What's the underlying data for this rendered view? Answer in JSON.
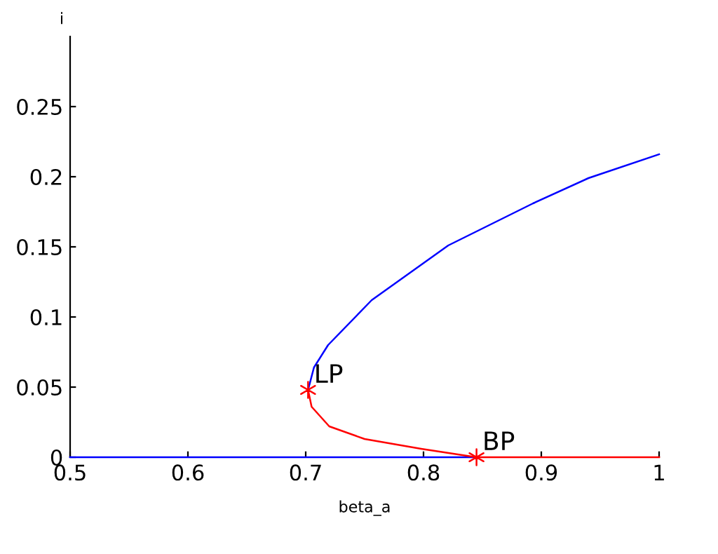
{
  "chart_data": {
    "type": "line",
    "xlabel": "beta_a",
    "ylabel": "i",
    "xlim": [
      0.5,
      1
    ],
    "ylim": [
      0,
      0.3
    ],
    "xticks": [
      0.5,
      0.6,
      0.7,
      0.8,
      0.9,
      1
    ],
    "yticks": [
      0,
      0.05,
      0.1,
      0.15,
      0.2,
      0.25
    ],
    "grid": false,
    "legend": false,
    "series": [
      {
        "color": "#0000ff",
        "x": [
          0.5,
          0.845
        ],
        "values": [
          0,
          0
        ]
      },
      {
        "color": "#ff0000",
        "x": [
          0.702,
          0.705,
          0.72,
          0.75,
          0.798,
          0.845
        ],
        "values": [
          0.048,
          0.036,
          0.022,
          0.013,
          0.006,
          0
        ]
      },
      {
        "color": "#ff0000",
        "x": [
          0.845,
          1.0
        ],
        "values": [
          0,
          0
        ]
      },
      {
        "color": "#0000ff",
        "x": [
          0.702,
          0.707,
          0.719,
          0.756,
          0.821,
          0.893,
          0.94,
          1.0
        ],
        "values": [
          0.048,
          0.064,
          0.08,
          0.112,
          0.151,
          0.181,
          0.199,
          0.216
        ]
      },
      {
        "type": "scatter",
        "color": "#ff0000",
        "marker": "cross",
        "x": [
          0.702,
          0.845
        ],
        "values": [
          0.048,
          0
        ]
      }
    ],
    "annotations": [
      {
        "text": "LP",
        "x": 0.702,
        "y": 0.048
      },
      {
        "text": "BP",
        "x": 0.845,
        "y": 0
      }
    ]
  }
}
